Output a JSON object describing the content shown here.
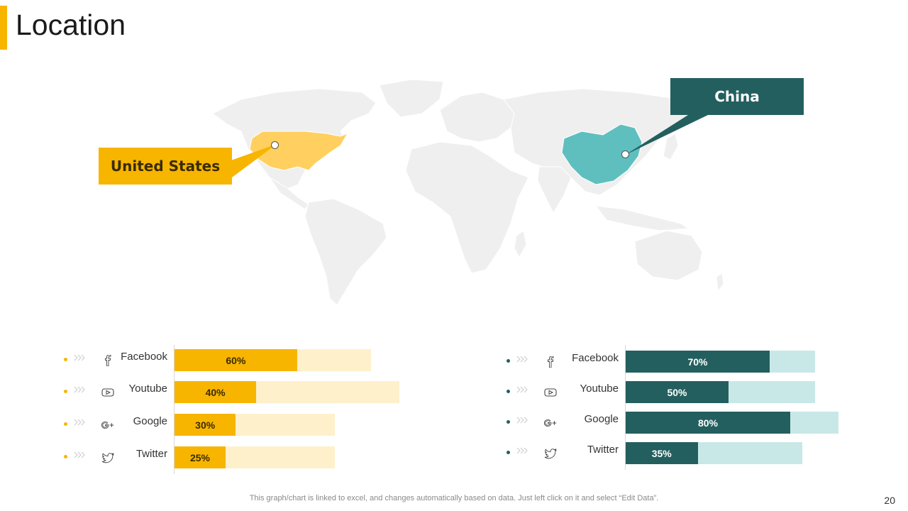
{
  "slide": {
    "title": "Location",
    "footnote": "This graph/chart is linked to excel,  and changes automatically based on data. Just left click on it and select “Edit Data”.",
    "page_number": "20"
  },
  "colors": {
    "accent_yellow": "#f7b500",
    "yellow_light": "#fff0cc",
    "teal_dark": "#245f5f",
    "teal_light": "#c8e8e7",
    "china_fill": "#5fbfbf",
    "us_fill": "#ffd060",
    "map_land": "#efefef"
  },
  "map": {
    "callouts": {
      "us": "United States",
      "china": "China"
    }
  },
  "left_stats": {
    "rows": [
      {
        "label": "Facebook",
        "icon": "facebook-icon",
        "value": 60,
        "value_text": "60%",
        "track_max": 0.7
      },
      {
        "label": "Youtube",
        "icon": "youtube-icon",
        "value": 40,
        "value_text": "40%",
        "track_max": 0.8
      },
      {
        "label": "Google",
        "icon": "google-plus-icon",
        "value": 30,
        "value_text": "30%",
        "track_max": 0.57
      },
      {
        "label": "Twitter",
        "icon": "twitter-icon",
        "value": 25,
        "value_text": "25%",
        "track_max": 0.57
      }
    ]
  },
  "right_stats": {
    "rows": [
      {
        "label": "Facebook",
        "icon": "facebook-icon",
        "value": 70,
        "value_text": "70%",
        "track_max": 0.89
      },
      {
        "label": "Youtube",
        "icon": "youtube-icon",
        "value": 50,
        "value_text": "50%",
        "track_max": 0.89
      },
      {
        "label": "Google",
        "icon": "google-plus-icon",
        "value": 80,
        "value_text": "80%",
        "track_max": 1.0
      },
      {
        "label": "Twitter",
        "icon": "twitter-icon",
        "value": 35,
        "value_text": "35%",
        "track_max": 0.83
      }
    ]
  }
}
